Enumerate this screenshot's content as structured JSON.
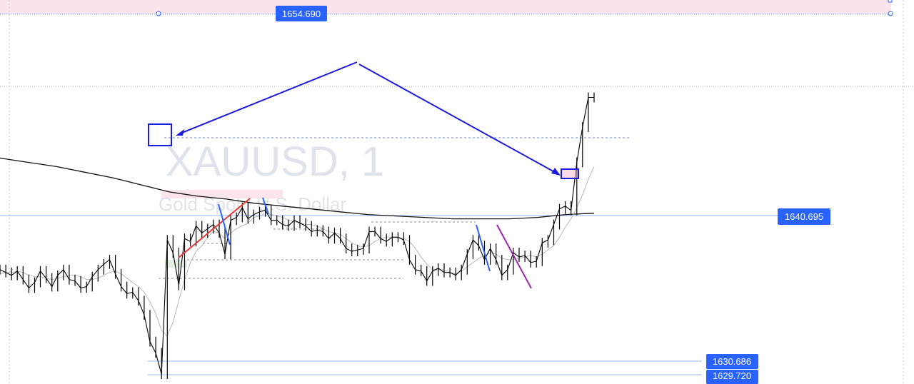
{
  "chart_data": {
    "type": "line",
    "title": "",
    "symbol": "XAUUSD",
    "interval": "1",
    "symbol_title": "XAUUSD, 1",
    "description": "Gold Spot / U.S. Dollar",
    "ylim": [
      1629.2,
      1656.4
    ],
    "series": [
      {
        "values": [
          1637.3,
          1637.1,
          1636.9,
          1637.2,
          1636.6,
          1636.0,
          1636.4,
          1637.2,
          1636.7,
          1636.1,
          1636.9,
          1637.3,
          1636.6,
          1636.5,
          1636.0,
          1636.1,
          1636.8,
          1637.3,
          1637.7,
          1638.0,
          1637.0,
          1636.1,
          1635.6,
          1635.7,
          1635.1,
          1634.1,
          1632.2,
          1631.4,
          1629.9,
          1639.4,
          1638.5,
          1636.2,
          1639.5,
          1639.3,
          1640.4,
          1639.9,
          1640.2,
          1640.5,
          1639.9,
          1638.4,
          1640.8,
          1641.0,
          1641.7,
          1640.9,
          1641.2,
          1641.4,
          1641.5,
          1640.8,
          1640.8,
          1640.5,
          1640.4,
          1640.8,
          1640.6,
          1640.4,
          1640.0,
          1640.1,
          1640.0,
          1639.5,
          1639.9,
          1639.5,
          1638.8,
          1638.6,
          1638.7,
          1638.8,
          1640.0,
          1640.0,
          1639.5,
          1639.3,
          1639.6,
          1639.6,
          1639.4,
          1638.0,
          1637.3,
          1637.2,
          1636.5,
          1637.2,
          1637.4,
          1637.1,
          1637.1,
          1636.9,
          1637.3,
          1638.4,
          1639.4,
          1639.0,
          1638.0,
          1638.8,
          1638.0,
          1636.9,
          1637.3,
          1638.5,
          1638.2,
          1638.3,
          1637.8,
          1637.9,
          1639.2,
          1639.4,
          1640.5,
          1641.6,
          1641.8,
          1641.5,
          1644.9,
          1647.4,
          1649.5,
          1649.5
        ],
        "ma_values": [
          1637.0,
          1637.1,
          1637.1,
          1637.2,
          1637.1,
          1636.9,
          1636.8,
          1636.8,
          1636.7,
          1636.6,
          1636.7,
          1636.8,
          1636.9,
          1636.9,
          1636.8,
          1636.6,
          1636.6,
          1636.7,
          1636.9,
          1637.1,
          1637.2,
          1637.0,
          1636.7,
          1636.4,
          1636.1,
          1635.7,
          1635.0,
          1634.2,
          1633.0,
          1632.6,
          1633.6,
          1635.1,
          1636.6,
          1637.8,
          1638.6,
          1639.0,
          1639.6,
          1640.0,
          1639.9,
          1639.5,
          1639.9,
          1640.2,
          1640.4,
          1640.6,
          1641.0,
          1641.1,
          1641.3,
          1641.2,
          1641.1,
          1641.0,
          1640.8,
          1640.7,
          1640.6,
          1640.5,
          1640.5,
          1640.4,
          1640.2,
          1640.0,
          1639.9,
          1639.8,
          1639.5,
          1639.2,
          1639.0,
          1638.9,
          1639.0,
          1639.3,
          1639.5,
          1639.6,
          1639.6,
          1639.6,
          1639.5,
          1639.3,
          1638.8,
          1638.2,
          1637.7,
          1637.3,
          1637.3,
          1637.3,
          1637.1,
          1637.0,
          1637.2,
          1637.5,
          1637.8,
          1638.1,
          1638.3,
          1638.5,
          1638.4,
          1638.1,
          1638.0,
          1638.0,
          1638.1,
          1638.2,
          1638.3,
          1638.2,
          1638.4,
          1638.7,
          1639.0,
          1639.6,
          1640.3,
          1640.9,
          1641.7,
          1642.6,
          1643.7,
          1644.6
        ],
        "long_ma_values": [
          1645.2,
          1644.9,
          1644.6,
          1644.2,
          1643.8,
          1643.3,
          1642.8,
          1642.5,
          1642.3,
          1642.0,
          1641.8,
          1641.6,
          1641.4,
          1641.2,
          1641.1,
          1641.0,
          1640.9,
          1640.9,
          1640.9,
          1641.0,
          1641.2,
          1641.3
        ]
      }
    ],
    "price_levels": [
      {
        "value": "1654.690",
        "label_bg": "#2962ff"
      },
      {
        "value": "1640.695",
        "label_bg": "#2962ff"
      },
      {
        "value": "1630.686",
        "label_bg": "#2962ff"
      },
      {
        "value": "1629.720",
        "label_bg": "#2962ff"
      }
    ],
    "annotations": {
      "trend_line_colors": {
        "red": "#e53935",
        "blue": "#2962ff",
        "purple": "#9c27b0",
        "arrow": "#1a1ae0"
      },
      "zone_color_pink": "#f8bbd0",
      "zone_color_green": "#c8e6c9"
    },
    "grid": false
  }
}
